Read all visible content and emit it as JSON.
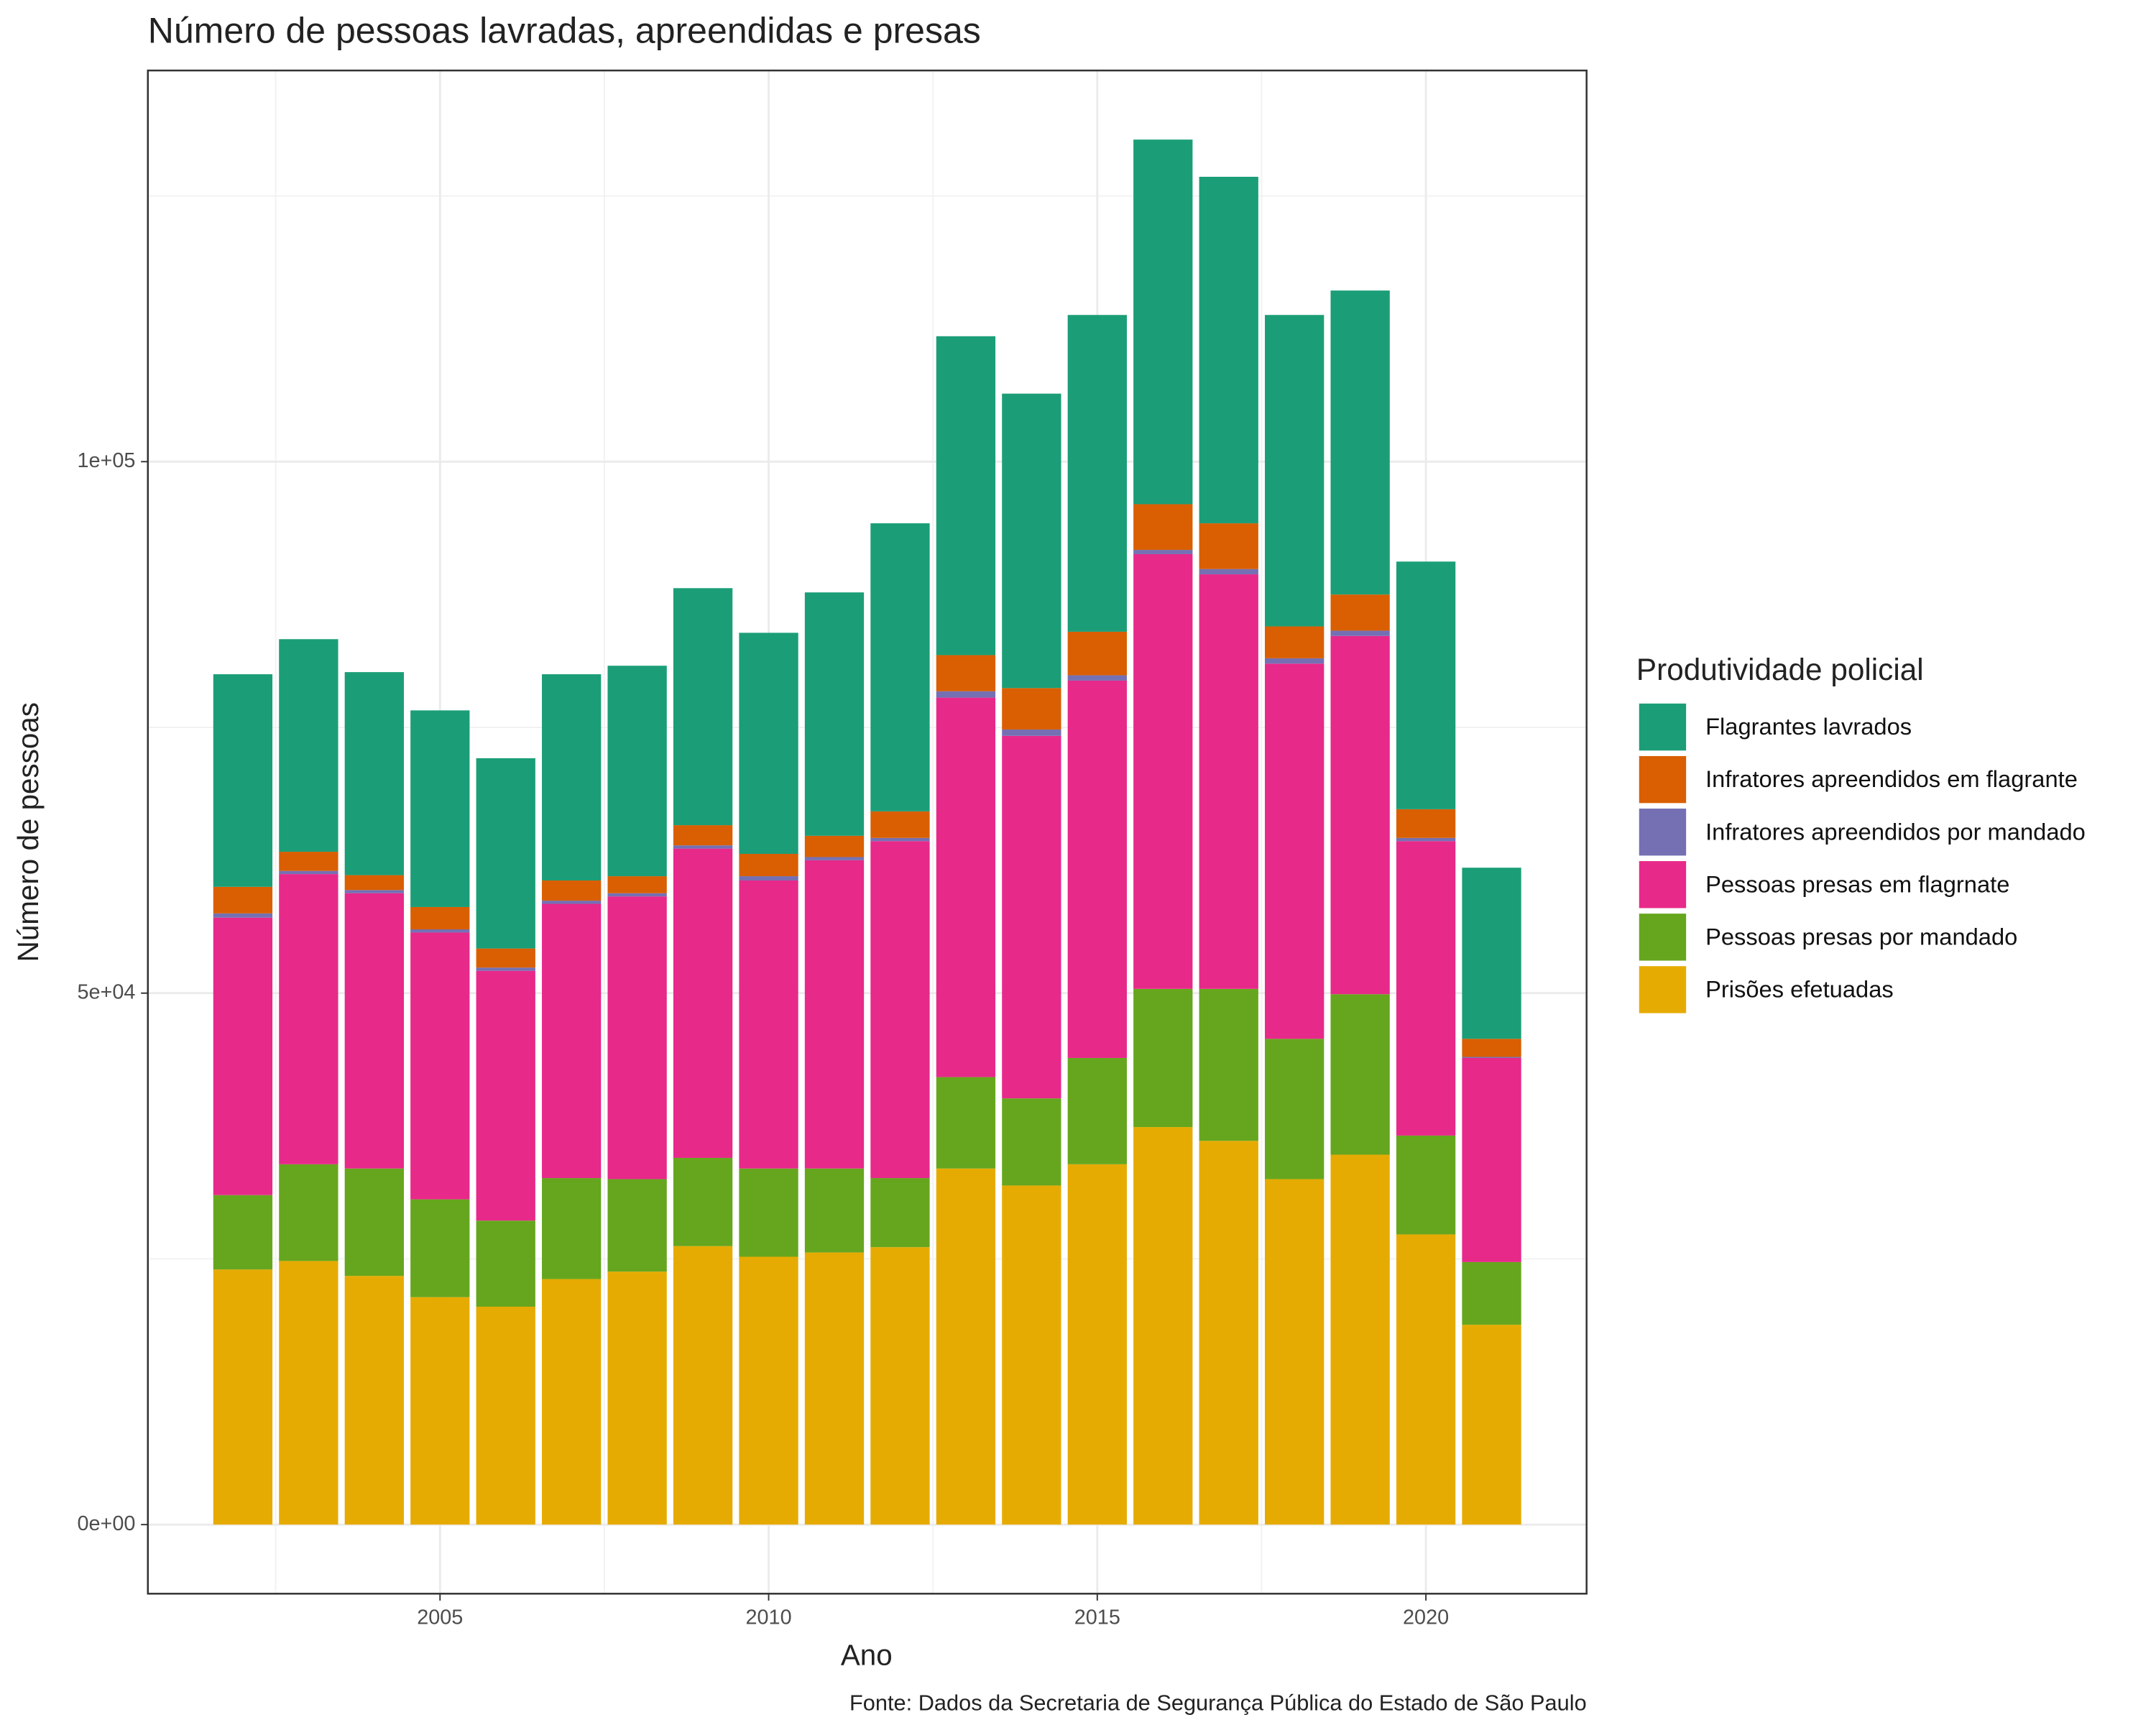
{
  "chart_data": {
    "type": "stacked_bar",
    "title": "Número de pessoas lavradas, apreendidas e presas",
    "x_label": "Ano",
    "y_label": "Número de pessoas",
    "legend_title": "Produtividade policial",
    "caption": "Fonte: Dados da Secretaria de Segurança Pública do Estado de São Paulo",
    "x": [
      2002,
      2003,
      2004,
      2005,
      2006,
      2007,
      2008,
      2009,
      2010,
      2011,
      2012,
      2013,
      2014,
      2015,
      2016,
      2017,
      2018,
      2019,
      2020,
      2021
    ],
    "xlim": [
      2000.555,
      2022.445
    ],
    "xticks": [
      2005,
      2010,
      2015,
      2020
    ],
    "x_minor_ticks": [
      2002.5,
      2007.5,
      2012.5,
      2017.5
    ],
    "ylim": [
      -6500,
      136800
    ],
    "yticks": [
      {
        "value": 0,
        "label": "0e+00"
      },
      {
        "value": 50000,
        "label": "5e+04"
      },
      {
        "value": 100000,
        "label": "1e+05"
      }
    ],
    "y_minor_ticks": [
      25000,
      75000,
      125000
    ],
    "grid": true,
    "legend_position": "right",
    "series": [
      {
        "name": "Flagrantes lavrados",
        "color": "#1b9e77",
        "values": [
          20000,
          20000,
          19100,
          18500,
          17900,
          19400,
          19800,
          22300,
          20800,
          22900,
          27100,
          30000,
          27700,
          29800,
          34300,
          32600,
          29300,
          28600,
          23300,
          16100
        ]
      },
      {
        "name": "Infratores apreendidos em flagrante",
        "color": "#d95f02",
        "values": [
          2500,
          1800,
          1400,
          2100,
          1800,
          1900,
          1600,
          1900,
          2100,
          2000,
          2500,
          3400,
          3900,
          4100,
          4300,
          4300,
          3000,
          3400,
          2700,
          1700
        ]
      },
      {
        "name": "Infratores apreendidos por mandado",
        "color": "#7570b3",
        "values": [
          400,
          300,
          300,
          300,
          300,
          300,
          300,
          300,
          400,
          300,
          300,
          600,
          600,
          500,
          400,
          500,
          500,
          500,
          300,
          100
        ]
      },
      {
        "name": "Pessoas presas em flagrnate",
        "color": "#e7298a",
        "values": [
          26100,
          27300,
          25900,
          25100,
          23500,
          25800,
          26600,
          29100,
          27100,
          29000,
          31700,
          35700,
          34100,
          35500,
          40900,
          39000,
          35300,
          33700,
          27700,
          19200
        ]
      },
      {
        "name": "Pessoas presas por mandado",
        "color": "#66a61e",
        "values": [
          7000,
          9100,
          10100,
          9200,
          8100,
          9500,
          8700,
          8300,
          8300,
          7900,
          6500,
          8600,
          8200,
          10000,
          13000,
          14300,
          13200,
          15100,
          9300,
          5900
        ]
      },
      {
        "name": "Prisões efetuadas",
        "color": "#e6ab02",
        "values": [
          24000,
          24800,
          23400,
          21400,
          20500,
          23100,
          23800,
          26200,
          25200,
          25600,
          26100,
          33500,
          31900,
          33900,
          37400,
          36100,
          32500,
          34800,
          27300,
          18800
        ]
      }
    ]
  }
}
